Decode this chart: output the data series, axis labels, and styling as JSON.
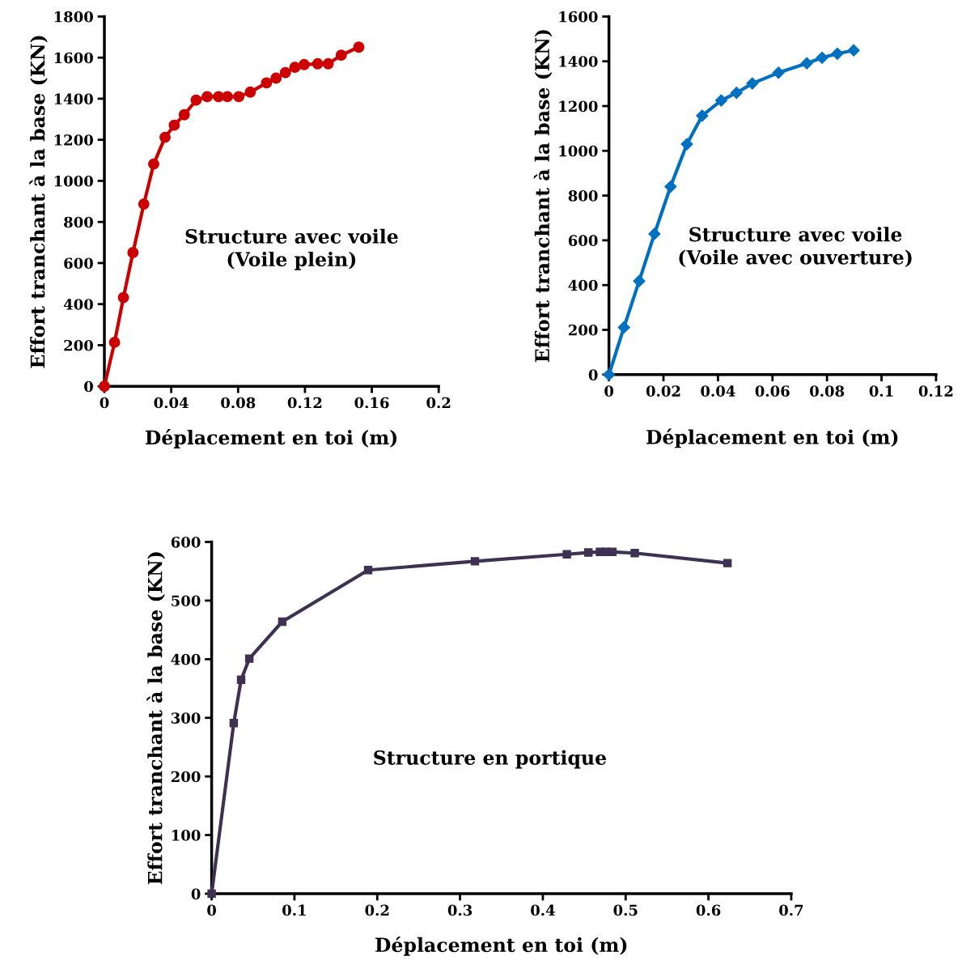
{
  "chart_data": [
    {
      "type": "line",
      "xlabel": "Déplacement en toi (m)",
      "ylabel": "Effort tranchant à la base (KN)",
      "annotations": [
        "Structure avec voile\n(Voile plein)"
      ],
      "xlim": [
        0,
        0.2
      ],
      "xticks": [
        0,
        0.04,
        0.08,
        0.12,
        0.16,
        0.2
      ],
      "ylim": [
        0,
        1800
      ],
      "yticks": [
        0,
        200,
        400,
        600,
        800,
        1000,
        1200,
        1400,
        1600,
        1800
      ],
      "grid": false,
      "marker": "circle",
      "line_style": "solid",
      "series": [
        {
          "color": "#cc0000",
          "x": [
            0,
            0.0061,
            0.0114,
            0.0171,
            0.0236,
            0.0295,
            0.0363,
            0.0418,
            0.0478,
            0.0549,
            0.0615,
            0.0683,
            0.0736,
            0.0804,
            0.0873,
            0.097,
            0.1027,
            0.1083,
            0.114,
            0.1195,
            0.1276,
            0.1339,
            0.1417,
            0.1522
          ],
          "values": [
            0,
            214,
            432,
            651,
            887,
            1082,
            1212,
            1271,
            1322,
            1393,
            1410,
            1410,
            1410,
            1410,
            1432,
            1477,
            1500,
            1527,
            1553,
            1566,
            1570,
            1570,
            1612,
            1651
          ]
        }
      ]
    },
    {
      "type": "line",
      "xlabel": "Déplacement en toi (m)",
      "ylabel": "Effort tranchant à la base (KN)",
      "annotations": [
        "Structure avec voile\n(Voile avec ouverture)"
      ],
      "xlim": [
        0,
        0.12
      ],
      "xticks": [
        0,
        0.02,
        0.04,
        0.06,
        0.08,
        0.1,
        0.12
      ],
      "ylim": [
        0,
        1600
      ],
      "yticks": [
        0,
        200,
        400,
        600,
        800,
        1000,
        1200,
        1400,
        1600
      ],
      "grid": false,
      "marker": "diamond",
      "line_style": "solid",
      "series": [
        {
          "color": "#0070c0",
          "x": [
            0,
            0.0055,
            0.0111,
            0.0167,
            0.0226,
            0.0286,
            0.0342,
            0.0412,
            0.0468,
            0.0526,
            0.0622,
            0.0726,
            0.0782,
            0.0838,
            0.0898
          ],
          "values": [
            0,
            211,
            418,
            629,
            840,
            1030,
            1157,
            1225,
            1259,
            1301,
            1349,
            1391,
            1416,
            1434,
            1449
          ]
        }
      ]
    },
    {
      "type": "line",
      "xlabel": "Déplacement en toi (m)",
      "ylabel": "Effort tranchant à la base (KN)",
      "annotations": [
        "Structure en portique"
      ],
      "xlim": [
        0,
        0.7
      ],
      "xticks": [
        0,
        0.1,
        0.2,
        0.3,
        0.4,
        0.5,
        0.6,
        0.7
      ],
      "ylim": [
        0,
        600
      ],
      "yticks": [
        0,
        100,
        200,
        300,
        400,
        500,
        600
      ],
      "grid": false,
      "marker": "square",
      "line_style": "solid",
      "series": [
        {
          "color": "#3f3151",
          "x": [
            0,
            0.0267,
            0.0356,
            0.0455,
            0.0853,
            0.189,
            0.318,
            0.429,
            0.455,
            0.469,
            0.476,
            0.484,
            0.511,
            0.623
          ],
          "values": [
            0,
            291,
            365,
            401,
            464,
            552,
            567,
            579,
            582,
            583,
            583,
            583,
            581,
            564
          ]
        }
      ]
    }
  ]
}
